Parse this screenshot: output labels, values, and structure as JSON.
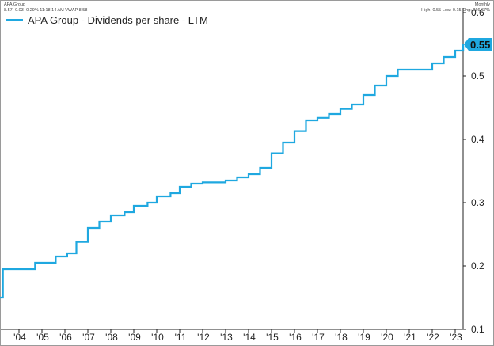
{
  "header": {
    "security": "APA Group",
    "quote": "8.57 -0.03 -0.29% 11:18:14 AM VWAP 8.58",
    "frequency": "Monthly",
    "stats": "High: 0.55 Low: 0.15 Chg: 266.67%"
  },
  "colors": {
    "series": "#1fa8e0",
    "axis": "#222222",
    "badge_text": "#111111"
  },
  "chart_data": {
    "type": "line",
    "title": "",
    "xlabel": "",
    "ylabel": "",
    "x_tick_labels": [
      "'04",
      "'05",
      "'06",
      "'07",
      "'08",
      "'09",
      "'10",
      "'11",
      "'12",
      "'13",
      "'14",
      "'15",
      "'16",
      "'17",
      "'18",
      "'19",
      "'20",
      "'21",
      "'22",
      "'23"
    ],
    "y_tick_labels": [
      "0.1",
      "0.2",
      "0.3",
      "0.4",
      "0.5",
      "0.6"
    ],
    "ylim": [
      0.1,
      0.6
    ],
    "grid": false,
    "legend": "top-left",
    "last_value_label": "0.55",
    "series": [
      {
        "name": "APA Group - Dividends per share - LTM",
        "style": "step",
        "x": [
          2003.0,
          2003.2,
          2003.3,
          2004.7,
          2005.2,
          2005.6,
          2006.1,
          2006.5,
          2007.0,
          2007.5,
          2008.0,
          2008.6,
          2009.0,
          2009.6,
          2010.0,
          2010.6,
          2011.0,
          2011.5,
          2012.0,
          2013.0,
          2013.5,
          2014.0,
          2014.5,
          2015.0,
          2015.5,
          2016.0,
          2016.5,
          2017.0,
          2017.5,
          2018.0,
          2018.5,
          2019.0,
          2019.5,
          2020.0,
          2020.5,
          2021.5,
          2022.0,
          2022.5,
          2023.0,
          2023.35
        ],
        "values": [
          0.15,
          0.15,
          0.195,
          0.205,
          0.205,
          0.215,
          0.22,
          0.238,
          0.26,
          0.27,
          0.28,
          0.285,
          0.295,
          0.3,
          0.31,
          0.315,
          0.325,
          0.33,
          0.332,
          0.335,
          0.34,
          0.345,
          0.355,
          0.378,
          0.395,
          0.413,
          0.43,
          0.434,
          0.44,
          0.448,
          0.455,
          0.47,
          0.485,
          0.5,
          0.51,
          0.51,
          0.52,
          0.53,
          0.54,
          0.55
        ]
      }
    ]
  }
}
